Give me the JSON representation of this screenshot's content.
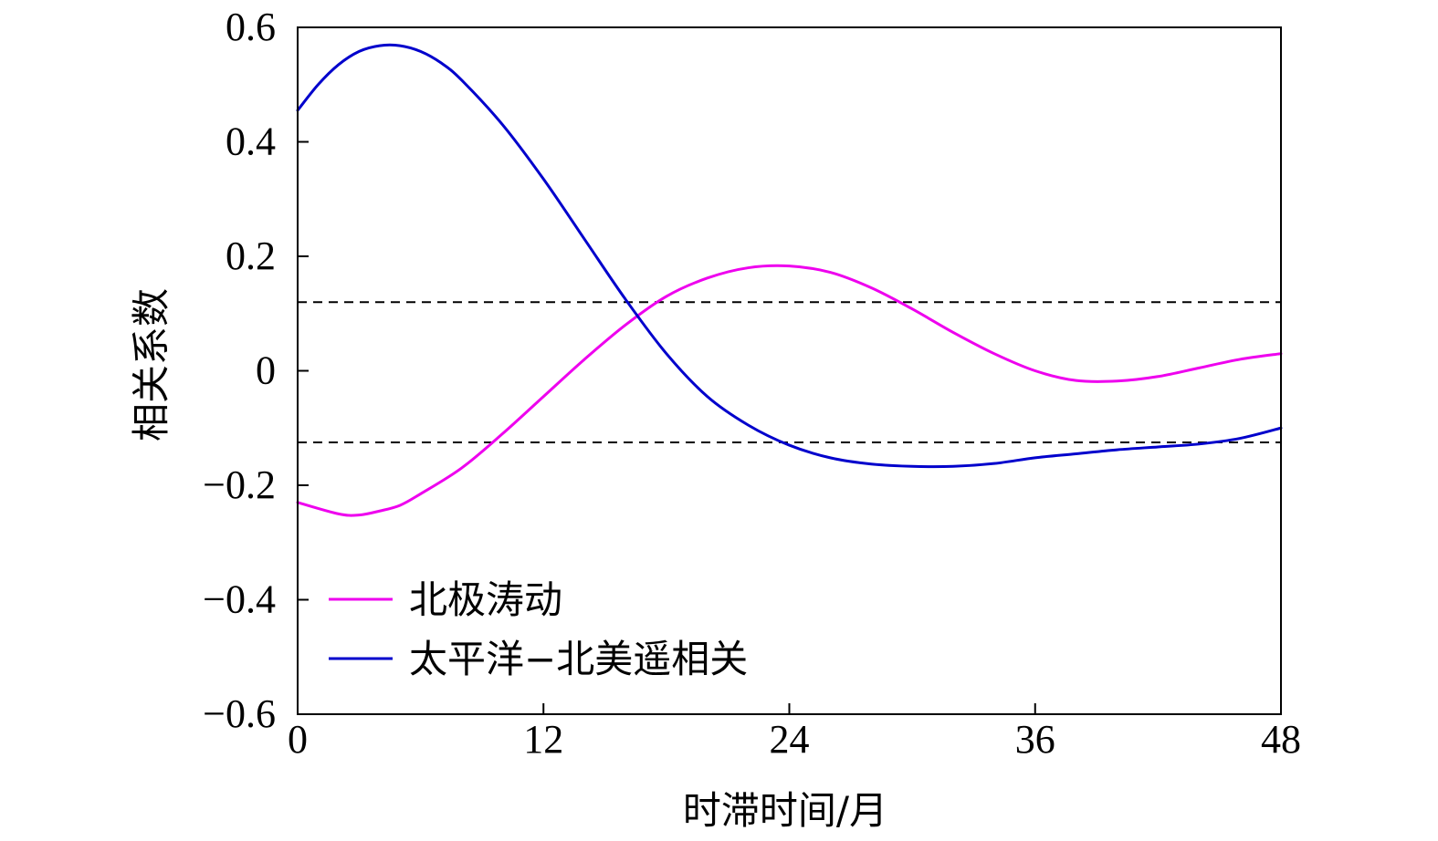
{
  "chart_data": {
    "type": "line",
    "xlabel": "时滞时间/月",
    "ylabel": "相关系数",
    "xlim": [
      0,
      48
    ],
    "ylim": [
      -0.6,
      0.6
    ],
    "x_ticks": [
      0,
      12,
      24,
      36,
      48
    ],
    "y_ticks": [
      -0.6,
      -0.4,
      -0.2,
      0,
      0.2,
      0.4,
      0.6
    ],
    "x_tick_labels": [
      "0",
      "12",
      "24",
      "36",
      "48"
    ],
    "y_tick_labels": [
      "−0.6",
      "−0.4",
      "−0.2",
      "0",
      "0.2",
      "0.4",
      "0.6"
    ],
    "grid": false,
    "legend_position": "bottom-left",
    "reference_lines": [
      {
        "y": 0.12,
        "style": "dashed",
        "color": "#000000"
      },
      {
        "y": -0.125,
        "style": "dashed",
        "color": "#000000"
      }
    ],
    "series": [
      {
        "name": "北极涛动",
        "color": "#ee00ee",
        "x": [
          0,
          2,
          3,
          4,
          5,
          6,
          8,
          10,
          12,
          14,
          16,
          18,
          20,
          22,
          24,
          26,
          28,
          30,
          32,
          34,
          36,
          38,
          40,
          42,
          44,
          46,
          48
        ],
        "y": [
          -0.23,
          -0.25,
          -0.252,
          -0.245,
          -0.235,
          -0.215,
          -0.17,
          -0.11,
          -0.045,
          0.02,
          0.08,
          0.13,
          0.162,
          0.18,
          0.183,
          0.172,
          0.145,
          0.108,
          0.067,
          0.03,
          0.0,
          -0.017,
          -0.018,
          -0.01,
          0.005,
          0.02,
          0.03
        ]
      },
      {
        "name": "太平洋−北美遥相关",
        "color": "#0000cc",
        "x": [
          0,
          1,
          2,
          3,
          4,
          5,
          6,
          7,
          8,
          10,
          12,
          14,
          16,
          18,
          20,
          22,
          24,
          26,
          28,
          30,
          32,
          34,
          36,
          38,
          40,
          42,
          44,
          46,
          48
        ],
        "y": [
          0.455,
          0.5,
          0.535,
          0.558,
          0.568,
          0.568,
          0.558,
          0.538,
          0.508,
          0.43,
          0.335,
          0.23,
          0.125,
          0.03,
          -0.045,
          -0.095,
          -0.13,
          -0.152,
          -0.163,
          -0.167,
          -0.167,
          -0.162,
          -0.152,
          -0.145,
          -0.138,
          -0.133,
          -0.128,
          -0.118,
          -0.1
        ]
      }
    ]
  }
}
